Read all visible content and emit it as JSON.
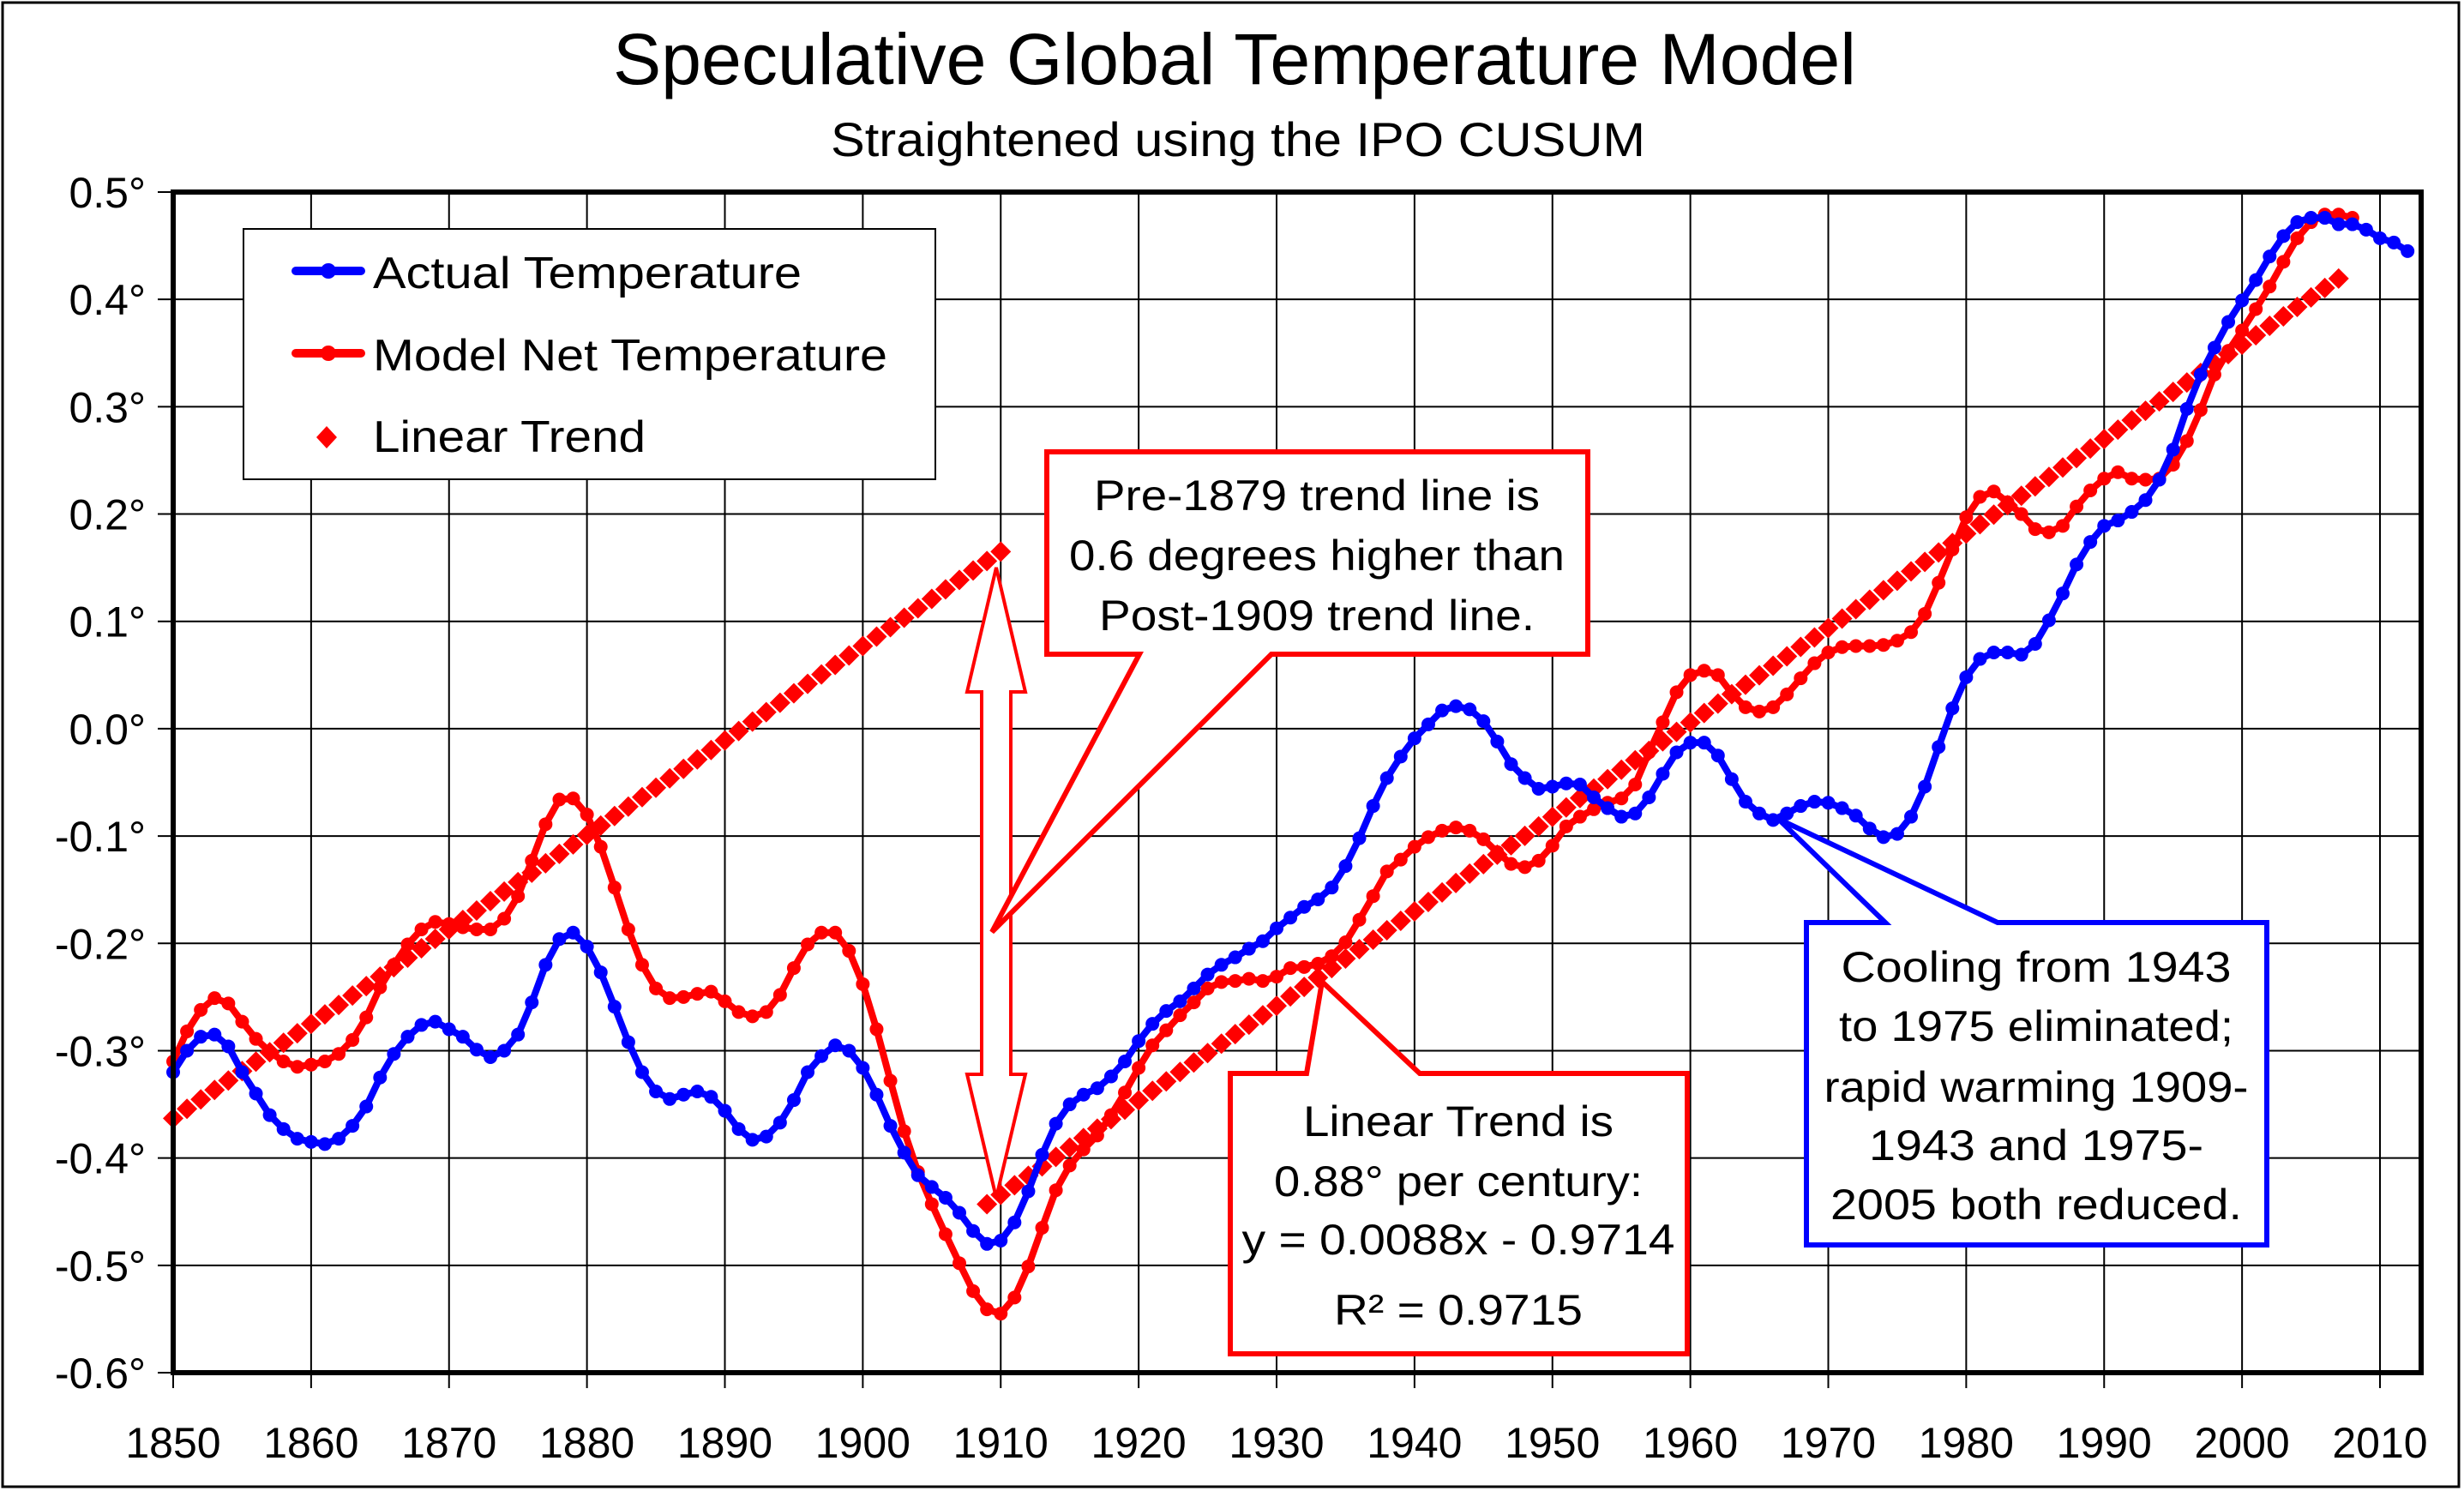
{
  "chart_data": {
    "type": "line",
    "title": "Speculative Global Temperature Model",
    "subtitle": "Straightened using the IPO CUSUM",
    "xlabel": "",
    "ylabel": "",
    "xlim": [
      1850,
      2013
    ],
    "ylim": [
      -0.6,
      0.5
    ],
    "x_ticks": [
      1850,
      1860,
      1870,
      1880,
      1890,
      1900,
      1910,
      1920,
      1930,
      1940,
      1950,
      1960,
      1970,
      1980,
      1990,
      2000,
      2010
    ],
    "x_tick_labels": [
      "1850",
      "1860",
      "1870",
      "1880",
      "1890",
      "1900",
      "1910",
      "1920",
      "1930",
      "1940",
      "1950",
      "1960",
      "1970",
      "1980",
      "1990",
      "2000",
      "2010"
    ],
    "y_ticks": [
      0.5,
      0.4,
      0.3,
      0.2,
      0.1,
      0.0,
      -0.1,
      -0.2,
      -0.3,
      -0.4,
      -0.5,
      -0.6
    ],
    "y_tick_labels": [
      "0.5°",
      "0.4°",
      "0.3°",
      "0.2°",
      "0.1°",
      "0.0°",
      "-0.1°",
      "-0.2°",
      "-0.3°",
      "-0.4°",
      "-0.5°",
      "-0.6°"
    ],
    "grid": true,
    "legend_position": "top-left",
    "legend": [
      {
        "label": "Actual Temperature",
        "color": "#0000ff",
        "marker": "circle",
        "line": true
      },
      {
        "label": "Model Net Temperature",
        "color": "#ff0000",
        "marker": "circle",
        "line": true
      },
      {
        "label": "Linear Trend",
        "color": "#ff0000",
        "marker": "diamond",
        "line": false
      }
    ],
    "series": [
      {
        "name": "Actual Temperature",
        "color": "#0000ff",
        "start_year": 1850,
        "values": [
          -0.32,
          -0.3,
          -0.287,
          -0.285,
          -0.296,
          -0.32,
          -0.34,
          -0.36,
          -0.373,
          -0.382,
          -0.385,
          -0.387,
          -0.382,
          -0.37,
          -0.352,
          -0.325,
          -0.303,
          -0.287,
          -0.276,
          -0.273,
          -0.28,
          -0.287,
          -0.299,
          -0.306,
          -0.3,
          -0.285,
          -0.255,
          -0.22,
          -0.196,
          -0.19,
          -0.203,
          -0.227,
          -0.259,
          -0.292,
          -0.32,
          -0.338,
          -0.345,
          -0.341,
          -0.338,
          -0.343,
          -0.356,
          -0.373,
          -0.383,
          -0.38,
          -0.367,
          -0.346,
          -0.32,
          -0.305,
          -0.295,
          -0.3,
          -0.316,
          -0.341,
          -0.37,
          -0.395,
          -0.416,
          -0.427,
          -0.437,
          -0.451,
          -0.468,
          -0.48,
          -0.477,
          -0.46,
          -0.431,
          -0.397,
          -0.368,
          -0.35,
          -0.341,
          -0.335,
          -0.324,
          -0.31,
          -0.291,
          -0.275,
          -0.263,
          -0.254,
          -0.242,
          -0.229,
          -0.22,
          -0.213,
          -0.205,
          -0.198,
          -0.186,
          -0.176,
          -0.166,
          -0.159,
          -0.148,
          -0.128,
          -0.102,
          -0.072,
          -0.046,
          -0.026,
          -0.009,
          0.004,
          0.017,
          0.021,
          0.018,
          0.007,
          -0.012,
          -0.033,
          -0.046,
          -0.056,
          -0.054,
          -0.051,
          -0.052,
          -0.064,
          -0.074,
          -0.082,
          -0.079,
          -0.064,
          -0.042,
          -0.022,
          -0.013,
          -0.013,
          -0.025,
          -0.047,
          -0.068,
          -0.079,
          -0.085,
          -0.079,
          -0.072,
          -0.068,
          -0.069,
          -0.074,
          -0.081,
          -0.093,
          -0.101,
          -0.098,
          -0.082,
          -0.054,
          -0.017,
          0.019,
          0.048,
          0.065,
          0.071,
          0.071,
          0.069,
          0.079,
          0.101,
          0.126,
          0.153,
          0.174,
          0.189,
          0.194,
          0.202,
          0.213,
          0.232,
          0.26,
          0.298,
          0.33,
          0.355,
          0.379,
          0.399,
          0.418,
          0.44,
          0.459,
          0.472,
          0.476,
          0.476,
          0.47,
          0.47,
          0.465,
          0.457,
          0.453,
          0.445
        ]
      },
      {
        "name": "Model Net Temperature",
        "color": "#ff0000",
        "start_year": 1850,
        "values": [
          -0.31,
          -0.282,
          -0.262,
          -0.251,
          -0.256,
          -0.273,
          -0.289,
          -0.301,
          -0.31,
          -0.315,
          -0.313,
          -0.31,
          -0.303,
          -0.29,
          -0.269,
          -0.241,
          -0.22,
          -0.201,
          -0.187,
          -0.18,
          -0.182,
          -0.185,
          -0.187,
          -0.187,
          -0.177,
          -0.156,
          -0.123,
          -0.089,
          -0.066,
          -0.065,
          -0.08,
          -0.11,
          -0.148,
          -0.187,
          -0.22,
          -0.242,
          -0.251,
          -0.25,
          -0.247,
          -0.245,
          -0.254,
          -0.264,
          -0.268,
          -0.264,
          -0.248,
          -0.223,
          -0.201,
          -0.19,
          -0.19,
          -0.207,
          -0.238,
          -0.28,
          -0.328,
          -0.375,
          -0.413,
          -0.443,
          -0.471,
          -0.498,
          -0.524,
          -0.541,
          -0.545,
          -0.53,
          -0.501,
          -0.465,
          -0.43,
          -0.407,
          -0.392,
          -0.379,
          -0.36,
          -0.339,
          -0.316,
          -0.295,
          -0.281,
          -0.267,
          -0.255,
          -0.242,
          -0.236,
          -0.235,
          -0.233,
          -0.235,
          -0.231,
          -0.223,
          -0.222,
          -0.219,
          -0.212,
          -0.199,
          -0.178,
          -0.156,
          -0.133,
          -0.122,
          -0.11,
          -0.101,
          -0.095,
          -0.092,
          -0.095,
          -0.103,
          -0.115,
          -0.126,
          -0.129,
          -0.123,
          -0.109,
          -0.091,
          -0.082,
          -0.075,
          -0.069,
          -0.065,
          -0.052,
          -0.022,
          0.006,
          0.034,
          0.05,
          0.054,
          0.05,
          0.033,
          0.02,
          0.016,
          0.02,
          0.032,
          0.047,
          0.061,
          0.071,
          0.076,
          0.077,
          0.077,
          0.078,
          0.082,
          0.09,
          0.107,
          0.136,
          0.167,
          0.197,
          0.216,
          0.221,
          0.211,
          0.2,
          0.186,
          0.183,
          0.189,
          0.207,
          0.222,
          0.233,
          0.239,
          0.233,
          0.232,
          0.233,
          0.246,
          0.268,
          0.297,
          0.33,
          0.352,
          0.371,
          0.391,
          0.412,
          0.435,
          0.457,
          0.472,
          0.479,
          0.479,
          0.476
        ]
      }
    ],
    "trend_lines": [
      {
        "name": "Pre-1879 trend line",
        "color": "#ff0000",
        "marker": "diamond",
        "from_year": 1850,
        "to_year": 1910,
        "slope_per_year": 0.0088,
        "value_at_1850": -0.363,
        "value_at_end": 0.165
      },
      {
        "name": "Post-1909 trend line (Linear Trend)",
        "color": "#ff0000",
        "marker": "diamond",
        "from_year": 1909,
        "to_year": 2007,
        "slope_per_year": 0.0088,
        "value_at_start": -0.443,
        "value_at_end": 0.419
      }
    ],
    "double_arrow": {
      "year": 1910,
      "from_value": 0.165,
      "to_value": -0.434,
      "color": "#ff0000"
    },
    "annotations": [
      {
        "id": "pre1879-callout",
        "border_color": "#ff0000",
        "lines": [
          "Pre-1879 trend line is",
          "0.6 degrees higher than",
          "Post-1909 trend line."
        ],
        "points_to": {
          "year": 1910,
          "value": -0.2
        }
      },
      {
        "id": "linear-trend-callout",
        "border_color": "#ff0000",
        "lines": [
          "Linear Trend is",
          "0.88° per century:",
          "y = 0.0088x - 0.9714",
          "R² = 0.9715"
        ],
        "equation": {
          "slope": 0.0088,
          "intercept": -0.9714,
          "r_squared": 0.9715
        },
        "points_to": {
          "year": 1934,
          "value": -0.22
        }
      },
      {
        "id": "cooling-callout",
        "border_color": "#0000ff",
        "lines": [
          "Cooling from 1943",
          "to 1975 eliminated;",
          "rapid warming 1909-",
          "1943 and 1975-",
          "2005 both reduced."
        ],
        "points_to": {
          "year": 1966,
          "value": -0.085
        }
      }
    ]
  }
}
